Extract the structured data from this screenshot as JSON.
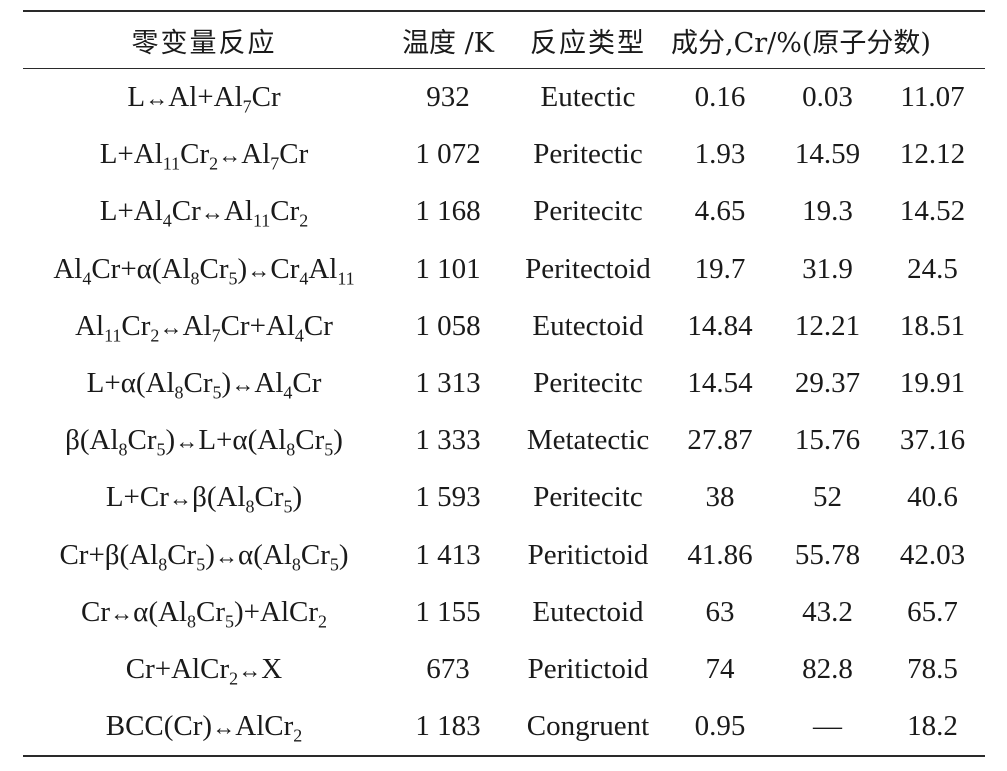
{
  "table": {
    "headers": {
      "reaction": "零变量反应",
      "temperature": "温度 /K",
      "type": "反应类型",
      "composition": "成分,Cr/%(原子分数)"
    },
    "rows": [
      {
        "reaction": [
          [
            "L↔Al+Al",
            ""
          ],
          [
            "7",
            ""
          ],
          [
            "Cr",
            ""
          ]
        ],
        "reaction_text": "L↔Al+Al7Cr",
        "temperature": "932",
        "type": "Eutectic",
        "c1": "0.16",
        "c2": "0.03",
        "c3": "11.07"
      },
      {
        "reaction_text": "L+Al11Cr2↔Al7Cr",
        "temperature": "1 072",
        "type": "Peritectic",
        "c1": "1.93",
        "c2": "14.59",
        "c3": "12.12"
      },
      {
        "reaction_text": "L+Al4Cr↔Al11Cr2",
        "temperature": "1 168",
        "type": "Peritecitc",
        "c1": "4.65",
        "c2": "19.3",
        "c3": "14.52"
      },
      {
        "reaction_text": "Al4Cr+α(Al8Cr5)↔Cr4Al11",
        "temperature": "1 101",
        "type": "Peritectoid",
        "c1": "19.7",
        "c2": "31.9",
        "c3": "24.5"
      },
      {
        "reaction_text": "Al11Cr2↔Al7Cr+Al4Cr",
        "temperature": "1 058",
        "type": "Eutectoid",
        "c1": "14.84",
        "c2": "12.21",
        "c3": "18.51"
      },
      {
        "reaction_text": "L+α(Al8Cr5)↔Al4Cr",
        "temperature": "1 313",
        "type": "Peritecitc",
        "c1": "14.54",
        "c2": "29.37",
        "c3": "19.91"
      },
      {
        "reaction_text": "β(Al8Cr5)↔L+α(Al8Cr5)",
        "temperature": "1 333",
        "type": "Metatectic",
        "c1": "27.87",
        "c2": "15.76",
        "c3": "37.16"
      },
      {
        "reaction_text": "L+Cr↔β(Al8Cr5)",
        "temperature": "1 593",
        "type": "Peritecitc",
        "c1": "38",
        "c2": "52",
        "c3": "40.6"
      },
      {
        "reaction_text": "Cr+β(Al8Cr5)↔α(Al8Cr5)",
        "temperature": "1 413",
        "type": "Peritictoid",
        "c1": "41.86",
        "c2": "55.78",
        "c3": "42.03"
      },
      {
        "reaction_text": "Cr↔α(Al8Cr5)+AlCr2",
        "temperature": "1 155",
        "type": "Eutectoid",
        "c1": "63",
        "c2": "43.2",
        "c3": "65.7"
      },
      {
        "reaction_text": "Cr+AlCr2↔X",
        "temperature": "673",
        "type": "Peritictoid",
        "c1": "74",
        "c2": "82.8",
        "c3": "78.5"
      },
      {
        "reaction_text": "BCC(Cr)↔AlCr2",
        "temperature": "1 183",
        "type": "Congruent",
        "c1": "0.95",
        "c2": "—",
        "c3": "18.2"
      }
    ],
    "reaction_parts": [
      [
        [
          "t",
          "L"
        ],
        [
          "a",
          "↔"
        ],
        [
          "t",
          "Al+Al"
        ],
        [
          "s",
          "7"
        ],
        [
          "t",
          "Cr"
        ]
      ],
      [
        [
          "t",
          "L+Al"
        ],
        [
          "s",
          "11"
        ],
        [
          "t",
          "Cr"
        ],
        [
          "s",
          "2"
        ],
        [
          "a",
          "↔"
        ],
        [
          "t",
          "Al"
        ],
        [
          "s",
          "7"
        ],
        [
          "t",
          "Cr"
        ]
      ],
      [
        [
          "t",
          "L+Al"
        ],
        [
          "s",
          "4"
        ],
        [
          "t",
          "Cr"
        ],
        [
          "a",
          "↔"
        ],
        [
          "t",
          "Al"
        ],
        [
          "s",
          "11"
        ],
        [
          "t",
          "Cr"
        ],
        [
          "s",
          "2"
        ]
      ],
      [
        [
          "t",
          "Al"
        ],
        [
          "s",
          "4"
        ],
        [
          "t",
          "Cr+α(Al"
        ],
        [
          "s",
          "8"
        ],
        [
          "t",
          "Cr"
        ],
        [
          "s",
          "5"
        ],
        [
          "t",
          ")"
        ],
        [
          "a",
          "↔"
        ],
        [
          "t",
          "Cr"
        ],
        [
          "s",
          "4"
        ],
        [
          "t",
          "Al"
        ],
        [
          "s",
          "11"
        ]
      ],
      [
        [
          "t",
          "Al"
        ],
        [
          "s",
          "11"
        ],
        [
          "t",
          "Cr"
        ],
        [
          "s",
          "2"
        ],
        [
          "a",
          "↔"
        ],
        [
          "t",
          "Al"
        ],
        [
          "s",
          "7"
        ],
        [
          "t",
          "Cr+Al"
        ],
        [
          "s",
          "4"
        ],
        [
          "t",
          "Cr"
        ]
      ],
      [
        [
          "t",
          "L+α(Al"
        ],
        [
          "s",
          "8"
        ],
        [
          "t",
          "Cr"
        ],
        [
          "s",
          "5"
        ],
        [
          "t",
          ")"
        ],
        [
          "a",
          "↔"
        ],
        [
          "t",
          "Al"
        ],
        [
          "s",
          "4"
        ],
        [
          "t",
          "Cr"
        ]
      ],
      [
        [
          "t",
          "β(Al"
        ],
        [
          "s",
          "8"
        ],
        [
          "t",
          "Cr"
        ],
        [
          "s",
          "5"
        ],
        [
          "t",
          ")"
        ],
        [
          "a",
          "↔"
        ],
        [
          "t",
          "L+α(Al"
        ],
        [
          "s",
          "8"
        ],
        [
          "t",
          "Cr"
        ],
        [
          "s",
          "5"
        ],
        [
          "t",
          ")"
        ]
      ],
      [
        [
          "t",
          "L+Cr"
        ],
        [
          "a",
          "↔"
        ],
        [
          "t",
          "β(Al"
        ],
        [
          "s",
          "8"
        ],
        [
          "t",
          "Cr"
        ],
        [
          "s",
          "5"
        ],
        [
          "t",
          ")"
        ]
      ],
      [
        [
          "t",
          "Cr+β(Al"
        ],
        [
          "s",
          "8"
        ],
        [
          "t",
          "Cr"
        ],
        [
          "s",
          "5"
        ],
        [
          "t",
          ")"
        ],
        [
          "a",
          "↔"
        ],
        [
          "t",
          "α(Al"
        ],
        [
          "s",
          "8"
        ],
        [
          "t",
          "Cr"
        ],
        [
          "s",
          "5"
        ],
        [
          "t",
          ")"
        ]
      ],
      [
        [
          "t",
          "Cr"
        ],
        [
          "a",
          "↔"
        ],
        [
          "t",
          "α(Al"
        ],
        [
          "s",
          "8"
        ],
        [
          "t",
          "Cr"
        ],
        [
          "s",
          "5"
        ],
        [
          "t",
          ")+AlCr"
        ],
        [
          "s",
          "2"
        ]
      ],
      [
        [
          "t",
          "Cr+AlCr"
        ],
        [
          "s",
          "2"
        ],
        [
          "a",
          "↔"
        ],
        [
          "t",
          "X"
        ]
      ],
      [
        [
          "t",
          "BCC(Cr)"
        ],
        [
          "a",
          "↔"
        ],
        [
          "t",
          "AlCr"
        ],
        [
          "s",
          "2"
        ]
      ]
    ]
  },
  "colors": {
    "text": "#1a1a1a",
    "rule": "#2a2a2a",
    "background": "#ffffff"
  }
}
